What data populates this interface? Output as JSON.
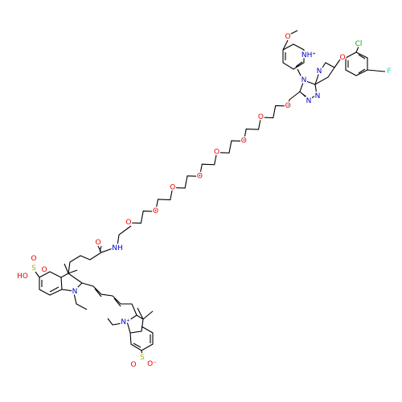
{
  "atom_labels": [
    "O",
    "NH⁺",
    "N",
    "N",
    "O",
    "Cl",
    "F",
    "N",
    "N",
    "O",
    "O",
    "O",
    "O",
    "O",
    "O",
    "O",
    "O",
    "O",
    "NH",
    "S",
    "O",
    "HO",
    "O",
    "N",
    "N⁺",
    "S",
    "O",
    "O⁻"
  ]
}
